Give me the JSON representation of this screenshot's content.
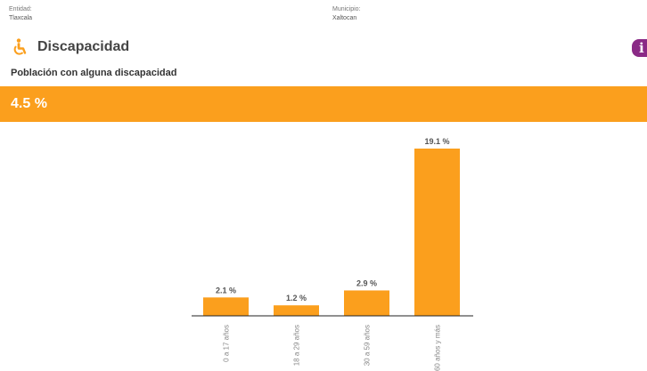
{
  "header": {
    "entidad_label": "Entidad:",
    "entidad_value": "Tlaxcala",
    "municipio_label": "Municipio:",
    "municipio_value": "Xaltocan"
  },
  "section": {
    "title": "Discapacidad",
    "icon": "wheelchair-icon",
    "info_icon": "info-icon",
    "info_label": "i"
  },
  "indicator": {
    "subtitle": "Población con alguna discapacidad",
    "value_label": "4.5 %",
    "value": 4.5
  },
  "colors": {
    "accent": "#fb9f1d",
    "info_badge": "#8a2a86"
  },
  "chart_data": {
    "type": "bar",
    "categories": [
      "0 a 17 años",
      "18 a 29 años",
      "30 a 59 años",
      "60 años y más"
    ],
    "values": [
      2.1,
      1.2,
      2.9,
      19.1
    ],
    "labels": [
      "2.1 %",
      "1.2 %",
      "2.9 %",
      "19.1 %"
    ],
    "title": "",
    "xlabel": "",
    "ylabel": "",
    "ylim": [
      0,
      19.1
    ],
    "grid": false,
    "legend": "none"
  }
}
